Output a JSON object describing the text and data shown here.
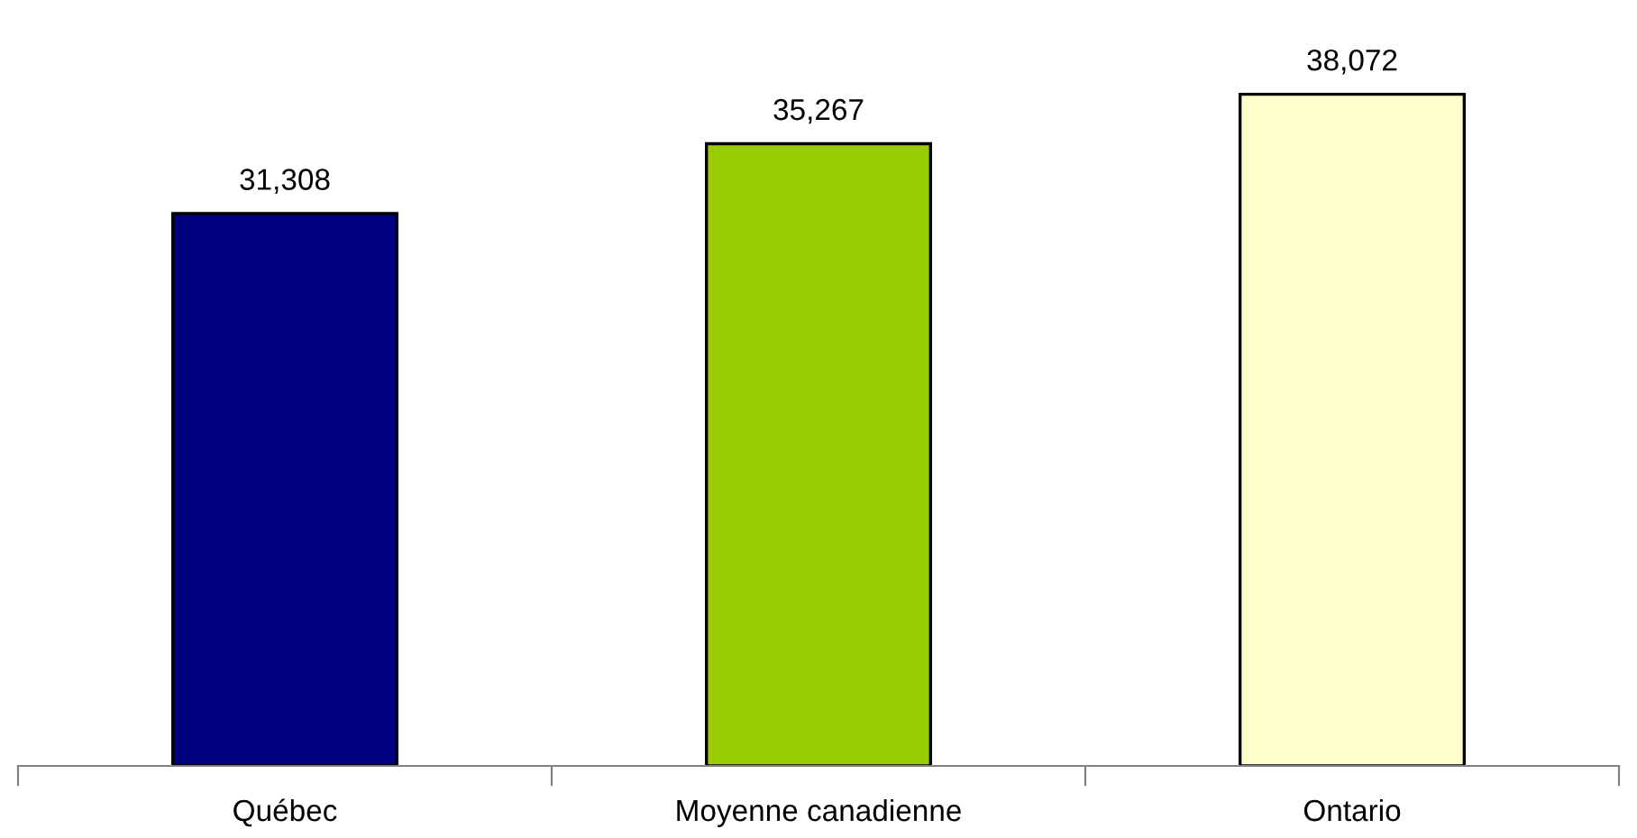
{
  "chart_data": {
    "type": "bar",
    "categories": [
      "Québec",
      "Moyenne canadienne",
      "Ontario"
    ],
    "values": [
      31308,
      35267,
      38072
    ],
    "colors": [
      "#000080",
      "#99cc00",
      "#ffffcc"
    ],
    "value_labels": [
      "31,308",
      "35,267",
      "38,072"
    ],
    "tick_labels": "x",
    "grid": false,
    "legend": false
  }
}
